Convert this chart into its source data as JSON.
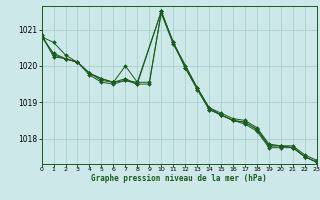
{
  "title": "Graphe pression niveau de la mer (hPa)",
  "background_color": "#cce8e8",
  "grid_color": "#aacfcf",
  "line_color": "#1a5c1a",
  "xlim": [
    0,
    23
  ],
  "ylim": [
    1017.3,
    1021.65
  ],
  "yticks": [
    1018,
    1019,
    1020,
    1021
  ],
  "xticks": [
    0,
    1,
    2,
    3,
    4,
    5,
    6,
    7,
    8,
    9,
    10,
    11,
    12,
    13,
    14,
    15,
    16,
    17,
    18,
    19,
    20,
    21,
    22,
    23
  ],
  "series": [
    {
      "x": [
        0,
        1,
        2,
        3,
        4,
        5,
        6,
        7,
        8,
        9,
        10,
        11,
        12,
        13,
        14,
        15,
        16,
        17,
        18,
        19,
        20,
        21,
        22,
        23
      ],
      "y": [
        1020.8,
        1020.65,
        1020.3,
        1020.1,
        1019.8,
        1019.65,
        1019.55,
        1019.6,
        1019.55,
        1019.55,
        1021.45,
        1020.6,
        1020.0,
        1019.4,
        1018.85,
        1018.7,
        1018.55,
        1018.5,
        1018.3,
        1017.85,
        1017.8,
        1017.8,
        1017.55,
        1017.4
      ]
    },
    {
      "x": [
        0,
        1,
        2,
        3,
        4,
        5,
        6,
        7,
        8,
        10,
        11,
        12,
        13,
        14,
        15,
        16,
        17,
        18,
        19,
        20,
        21,
        22,
        23
      ],
      "y": [
        1020.8,
        1020.35,
        1020.2,
        1020.1,
        1019.75,
        1019.55,
        1019.5,
        1019.6,
        1019.5,
        1021.5,
        1020.65,
        1019.95,
        1019.35,
        1018.8,
        1018.65,
        1018.5,
        1018.4,
        1018.2,
        1017.75,
        1017.75,
        1017.75,
        1017.5,
        1017.35
      ]
    },
    {
      "x": [
        0,
        1,
        2,
        3,
        4,
        5,
        6,
        7,
        8,
        10,
        11,
        13,
        14,
        15,
        16,
        17,
        18,
        19,
        20,
        21,
        22,
        23
      ],
      "y": [
        1020.85,
        1020.25,
        1020.2,
        1020.1,
        1019.8,
        1019.65,
        1019.55,
        1020.0,
        1019.55,
        1021.5,
        1020.65,
        1019.4,
        1018.8,
        1018.65,
        1018.5,
        1018.45,
        1018.25,
        1017.8,
        1017.8,
        1017.75,
        1017.5,
        1017.35
      ]
    },
    {
      "x": [
        0,
        1,
        2,
        3,
        4,
        5,
        6,
        7,
        8,
        9,
        10,
        11,
        12,
        13,
        14,
        15,
        16,
        17,
        18,
        19,
        20,
        21,
        22,
        23
      ],
      "y": [
        1020.85,
        1020.3,
        1020.2,
        1020.1,
        1019.8,
        1019.6,
        1019.55,
        1019.65,
        1019.5,
        1019.5,
        1021.5,
        1020.65,
        1019.95,
        1019.4,
        1018.85,
        1018.65,
        1018.5,
        1018.45,
        1018.25,
        1017.8,
        1017.8,
        1017.75,
        1017.5,
        1017.35
      ]
    }
  ]
}
